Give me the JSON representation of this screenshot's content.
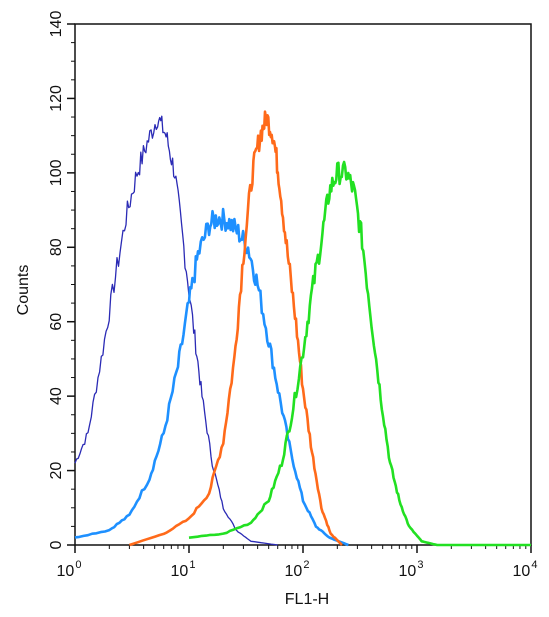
{
  "chart_data": {
    "type": "line",
    "title": "",
    "xlabel": "FL1-H",
    "ylabel": "Counts",
    "x_scale": "log",
    "xlim": [
      1,
      10000
    ],
    "ylim": [
      0,
      140
    ],
    "x_ticks": [
      {
        "value": 1,
        "base": "10",
        "exp": "0"
      },
      {
        "value": 10,
        "base": "10",
        "exp": "1"
      },
      {
        "value": 100,
        "base": "10",
        "exp": "2"
      },
      {
        "value": 1000,
        "base": "10",
        "exp": "3"
      },
      {
        "value": 10000,
        "base": "10",
        "exp": "4"
      }
    ],
    "y_ticks": [
      0,
      20,
      40,
      60,
      80,
      100,
      120,
      140
    ],
    "grid": false,
    "legend": "none",
    "series": [
      {
        "color": "#2b2bb5",
        "points": [
          [
            1,
            22
          ],
          [
            1.3,
            30
          ],
          [
            1.7,
            50
          ],
          [
            2.2,
            70
          ],
          [
            2.8,
            88
          ],
          [
            3.5,
            100
          ],
          [
            4.3,
            108
          ],
          [
            5.3,
            115
          ],
          [
            6.3,
            110
          ],
          [
            7.5,
            100
          ],
          [
            9,
            80
          ],
          [
            11,
            58
          ],
          [
            13,
            40
          ],
          [
            16,
            22
          ],
          [
            20,
            10
          ],
          [
            26,
            4
          ],
          [
            35,
            1
          ],
          [
            60,
            0
          ]
        ]
      },
      {
        "color": "#1e90ff",
        "points": [
          [
            1,
            2
          ],
          [
            2,
            4
          ],
          [
            3,
            8
          ],
          [
            4.5,
            18
          ],
          [
            6,
            30
          ],
          [
            8,
            48
          ],
          [
            10,
            65
          ],
          [
            12,
            78
          ],
          [
            15,
            86
          ],
          [
            18,
            88
          ],
          [
            22,
            87
          ],
          [
            27,
            84
          ],
          [
            33,
            80
          ],
          [
            40,
            70
          ],
          [
            50,
            55
          ],
          [
            62,
            40
          ],
          [
            78,
            25
          ],
          [
            100,
            12
          ],
          [
            130,
            5
          ],
          [
            170,
            2
          ],
          [
            250,
            0
          ]
        ]
      },
      {
        "color": "#ff6a1a",
        "points": [
          [
            3,
            0
          ],
          [
            6,
            3
          ],
          [
            10,
            7
          ],
          [
            15,
            14
          ],
          [
            20,
            28
          ],
          [
            25,
            50
          ],
          [
            30,
            78
          ],
          [
            36,
            100
          ],
          [
            42,
            110
          ],
          [
            48,
            115
          ],
          [
            55,
            110
          ],
          [
            62,
            98
          ],
          [
            72,
            80
          ],
          [
            85,
            62
          ],
          [
            100,
            42
          ],
          [
            120,
            25
          ],
          [
            145,
            10
          ],
          [
            175,
            3
          ],
          [
            220,
            0
          ]
        ]
      },
      {
        "color": "#22e022",
        "points": [
          [
            10,
            2
          ],
          [
            20,
            3
          ],
          [
            35,
            6
          ],
          [
            50,
            12
          ],
          [
            65,
            22
          ],
          [
            80,
            35
          ],
          [
            100,
            52
          ],
          [
            120,
            68
          ],
          [
            145,
            82
          ],
          [
            170,
            95
          ],
          [
            200,
            100
          ],
          [
            240,
            100
          ],
          [
            280,
            95
          ],
          [
            330,
            82
          ],
          [
            400,
            60
          ],
          [
            480,
            40
          ],
          [
            580,
            22
          ],
          [
            700,
            12
          ],
          [
            850,
            5
          ],
          [
            1100,
            1
          ],
          [
            1500,
            0
          ],
          [
            10000,
            0
          ]
        ]
      }
    ]
  }
}
